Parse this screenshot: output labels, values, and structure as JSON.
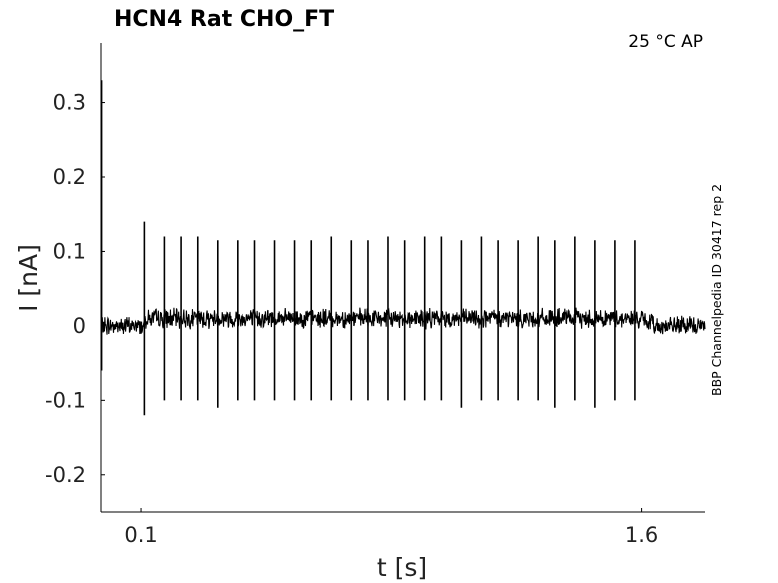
{
  "chart_data": {
    "type": "line",
    "title": "HCN4  Rat  CHO_FT",
    "conditions": "25 °C  AP",
    "side_label": "BBP Channelpedia ID 30417 rep 2",
    "xlabel": "t [s]",
    "ylabel": "I [nA]",
    "xlim": [
      -0.02,
      1.79
    ],
    "ylim": [
      -0.25,
      0.38
    ],
    "xticks": [
      {
        "value": 0.1,
        "label": "0.1"
      },
      {
        "value": 1.6,
        "label": "1.6"
      }
    ],
    "yticks": [
      {
        "value": 0.3,
        "label": "0.3"
      },
      {
        "value": 0.2,
        "label": "0.2"
      },
      {
        "value": 0.1,
        "label": "0.1"
      },
      {
        "value": 0,
        "label": "0"
      },
      {
        "value": -0.1,
        "label": "-0.1"
      },
      {
        "value": -0.2,
        "label": "-0.2"
      }
    ],
    "grid": false,
    "color": "#000000",
    "series": [
      {
        "baseline_windows": [
          {
            "t_start": -0.02,
            "t_end": 0.11,
            "level": 0.0
          },
          {
            "t_start": 0.11,
            "t_end": 1.59,
            "level": 0.01
          },
          {
            "t_start": 1.59,
            "t_end": 1.65,
            "level": 0.01,
            "level_end": 0.0
          },
          {
            "t_start": 1.65,
            "t_end": 1.79,
            "level": 0.0
          }
        ],
        "initial_transient": {
          "t": -0.02,
          "peak": 0.33,
          "trough": -0.06
        },
        "spikes": [
          {
            "t": 0.11,
            "peak": 0.14,
            "trough": -0.12
          },
          {
            "t": 0.17,
            "peak": 0.12,
            "trough": -0.1
          },
          {
            "t": 0.22,
            "peak": 0.12,
            "trough": -0.1
          },
          {
            "t": 0.27,
            "peak": 0.12,
            "trough": -0.1
          },
          {
            "t": 0.33,
            "peak": 0.115,
            "trough": -0.11
          },
          {
            "t": 0.39,
            "peak": 0.115,
            "trough": -0.1
          },
          {
            "t": 0.44,
            "peak": 0.115,
            "trough": -0.1
          },
          {
            "t": 0.5,
            "peak": 0.115,
            "trough": -0.1
          },
          {
            "t": 0.56,
            "peak": 0.115,
            "trough": -0.1
          },
          {
            "t": 0.61,
            "peak": 0.115,
            "trough": -0.1
          },
          {
            "t": 0.67,
            "peak": 0.12,
            "trough": -0.1
          },
          {
            "t": 0.73,
            "peak": 0.115,
            "trough": -0.1
          },
          {
            "t": 0.78,
            "peak": 0.115,
            "trough": -0.1
          },
          {
            "t": 0.84,
            "peak": 0.12,
            "trough": -0.1
          },
          {
            "t": 0.89,
            "peak": 0.115,
            "trough": -0.1
          },
          {
            "t": 0.95,
            "peak": 0.12,
            "trough": -0.1
          },
          {
            "t": 1.0,
            "peak": 0.12,
            "trough": -0.1
          },
          {
            "t": 1.06,
            "peak": 0.115,
            "trough": -0.11
          },
          {
            "t": 1.12,
            "peak": 0.12,
            "trough": -0.1
          },
          {
            "t": 1.17,
            "peak": 0.115,
            "trough": -0.1
          },
          {
            "t": 1.23,
            "peak": 0.115,
            "trough": -0.1
          },
          {
            "t": 1.29,
            "peak": 0.12,
            "trough": -0.1
          },
          {
            "t": 1.34,
            "peak": 0.115,
            "trough": -0.11
          },
          {
            "t": 1.4,
            "peak": 0.12,
            "trough": -0.1
          },
          {
            "t": 1.46,
            "peak": 0.115,
            "trough": -0.11
          },
          {
            "t": 1.52,
            "peak": 0.115,
            "trough": -0.1
          },
          {
            "t": 1.58,
            "peak": 0.115,
            "trough": -0.1
          }
        ]
      }
    ]
  }
}
